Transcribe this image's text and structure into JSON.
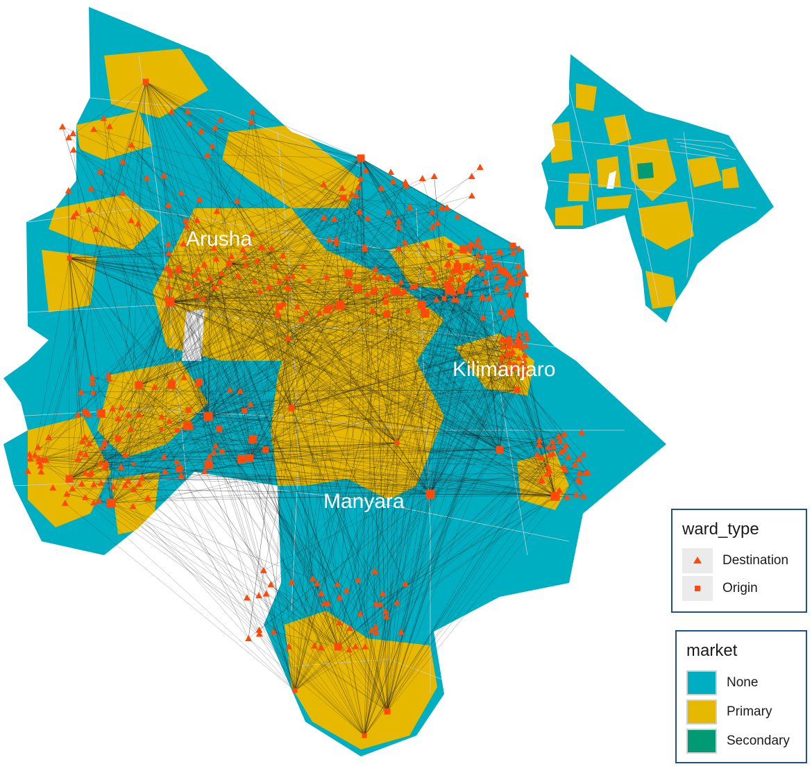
{
  "map": {
    "regions": [
      {
        "name": "Arusha"
      },
      {
        "name": "Kilimanjaro"
      },
      {
        "name": "Manyara"
      }
    ],
    "colors": {
      "none": "#00aec2",
      "primary": "#e7b800",
      "secondary": "#009a74",
      "marker": "#ff4a0a",
      "flow": "#1a1a1a",
      "boundary": "#c9d2d6"
    }
  },
  "legend_ward_type": {
    "title": "ward_type",
    "items": [
      {
        "label": "Destination",
        "shape": "triangle"
      },
      {
        "label": "Origin",
        "shape": "square"
      }
    ]
  },
  "legend_market": {
    "title": "market",
    "items": [
      {
        "label": "None",
        "color": "#00aec2"
      },
      {
        "label": "Primary",
        "color": "#e7b800"
      },
      {
        "label": "Secondary",
        "color": "#009a74"
      }
    ]
  }
}
